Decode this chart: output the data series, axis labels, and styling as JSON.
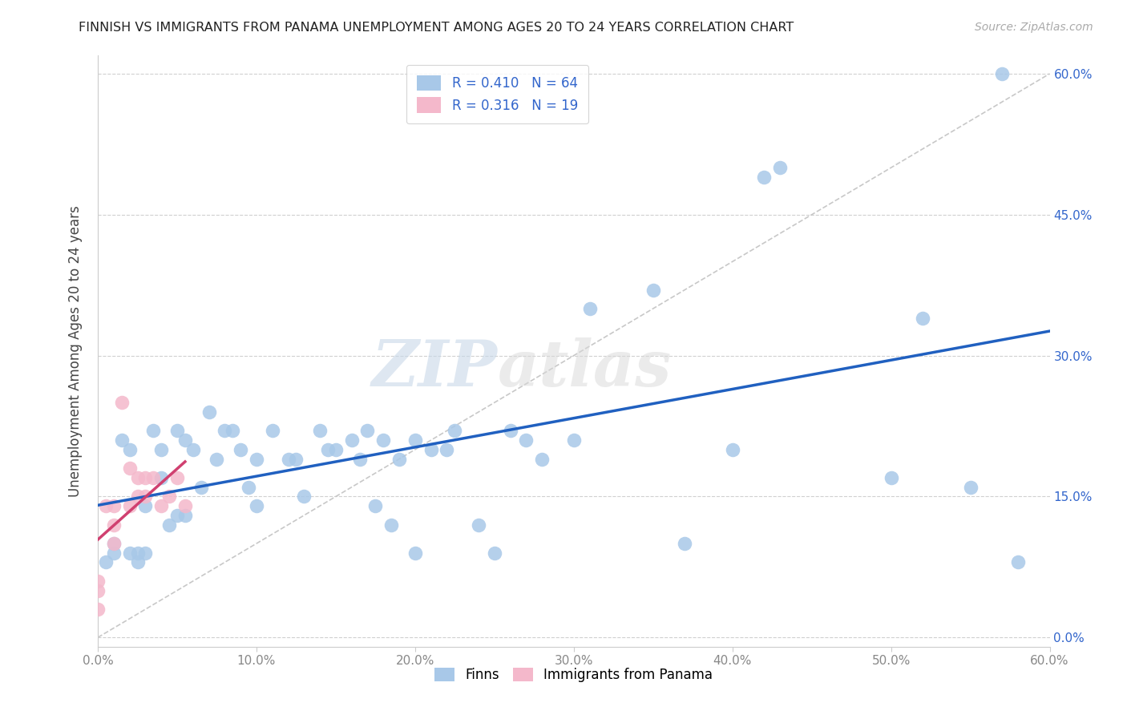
{
  "title": "FINNISH VS IMMIGRANTS FROM PANAMA UNEMPLOYMENT AMONG AGES 20 TO 24 YEARS CORRELATION CHART",
  "source": "Source: ZipAtlas.com",
  "ylabel": "Unemployment Among Ages 20 to 24 years",
  "xlim": [
    0.0,
    0.6
  ],
  "ylim": [
    -0.01,
    0.62
  ],
  "xticks": [
    0.0,
    0.1,
    0.2,
    0.3,
    0.4,
    0.5,
    0.6
  ],
  "yticks": [
    0.0,
    0.15,
    0.3,
    0.45,
    0.6
  ],
  "xtick_labels": [
    "0.0%",
    "10.0%",
    "20.0%",
    "30.0%",
    "40.0%",
    "50.0%",
    "60.0%"
  ],
  "right_ytick_labels": [
    "0.0%",
    "15.0%",
    "30.0%",
    "45.0%",
    "60.0%"
  ],
  "legend_r_blue": "R = 0.410",
  "legend_n_blue": "N = 64",
  "legend_r_pink": "R = 0.316",
  "legend_n_pink": "N = 19",
  "finns_label": "Finns",
  "panama_label": "Immigrants from Panama",
  "blue_color": "#a8c8e8",
  "pink_color": "#f4b8cb",
  "trend_blue": "#2060c0",
  "trend_pink": "#d04070",
  "diag_color": "#c8c8c8",
  "watermark_zip": "ZIP",
  "watermark_atlas": "atlas",
  "finns_x": [
    0.005,
    0.01,
    0.01,
    0.015,
    0.02,
    0.02,
    0.025,
    0.025,
    0.03,
    0.03,
    0.035,
    0.04,
    0.04,
    0.045,
    0.05,
    0.05,
    0.055,
    0.055,
    0.06,
    0.065,
    0.07,
    0.075,
    0.08,
    0.085,
    0.09,
    0.095,
    0.1,
    0.1,
    0.11,
    0.12,
    0.125,
    0.13,
    0.14,
    0.145,
    0.15,
    0.16,
    0.165,
    0.17,
    0.175,
    0.18,
    0.185,
    0.19,
    0.2,
    0.2,
    0.21,
    0.22,
    0.225,
    0.24,
    0.25,
    0.26,
    0.27,
    0.28,
    0.3,
    0.31,
    0.35,
    0.37,
    0.4,
    0.42,
    0.43,
    0.5,
    0.52,
    0.55,
    0.57,
    0.58
  ],
  "finns_y": [
    0.08,
    0.1,
    0.09,
    0.21,
    0.09,
    0.2,
    0.09,
    0.08,
    0.14,
    0.09,
    0.22,
    0.17,
    0.2,
    0.12,
    0.22,
    0.13,
    0.21,
    0.13,
    0.2,
    0.16,
    0.24,
    0.19,
    0.22,
    0.22,
    0.2,
    0.16,
    0.19,
    0.14,
    0.22,
    0.19,
    0.19,
    0.15,
    0.22,
    0.2,
    0.2,
    0.21,
    0.19,
    0.22,
    0.14,
    0.21,
    0.12,
    0.19,
    0.21,
    0.09,
    0.2,
    0.2,
    0.22,
    0.12,
    0.09,
    0.22,
    0.21,
    0.19,
    0.21,
    0.35,
    0.37,
    0.1,
    0.2,
    0.49,
    0.5,
    0.17,
    0.34,
    0.16,
    0.6,
    0.08
  ],
  "panama_x": [
    0.0,
    0.0,
    0.0,
    0.005,
    0.01,
    0.01,
    0.01,
    0.015,
    0.02,
    0.02,
    0.025,
    0.025,
    0.03,
    0.03,
    0.035,
    0.04,
    0.045,
    0.05,
    0.055
  ],
  "panama_y": [
    0.06,
    0.05,
    0.03,
    0.14,
    0.14,
    0.12,
    0.1,
    0.25,
    0.18,
    0.14,
    0.17,
    0.15,
    0.17,
    0.15,
    0.17,
    0.14,
    0.15,
    0.17,
    0.14
  ]
}
